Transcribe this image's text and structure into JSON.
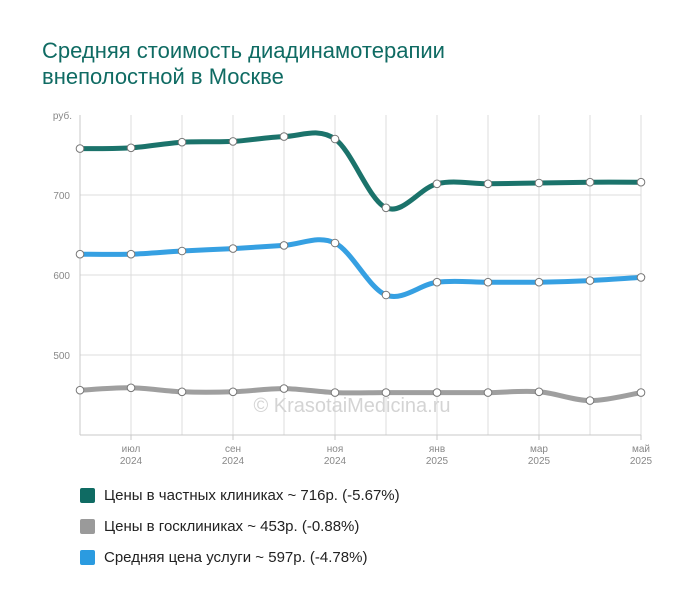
{
  "chart_data": {
    "type": "line",
    "title": [
      "Средняя стоимость диадинамотерапии",
      "внеполостной в Москве"
    ],
    "y_unit": "руб.",
    "y_ticks": [
      500,
      600,
      700
    ],
    "ylim": [
      400,
      800
    ],
    "watermark": "© KrasotaiMedicina.ru",
    "x": [
      "2024-06",
      "2024-07",
      "2024-08",
      "2024-09",
      "2024-10",
      "2024-11",
      "2024-12",
      "2025-01",
      "2025-02",
      "2025-03",
      "2025-04",
      "2025-05"
    ],
    "x_tick_labels": [
      {
        "index": 1,
        "month": "июл",
        "year": "2024"
      },
      {
        "index": 3,
        "month": "сен",
        "year": "2024"
      },
      {
        "index": 5,
        "month": "ноя",
        "year": "2024"
      },
      {
        "index": 7,
        "month": "янв",
        "year": "2025"
      },
      {
        "index": 9,
        "month": "мар",
        "year": "2025"
      },
      {
        "index": 11,
        "month": "май",
        "year": "2025"
      }
    ],
    "grid": true,
    "legend_position": "bottom",
    "series": [
      {
        "name": "Цены в частных клиниках",
        "color": "#0f6b63",
        "values": [
          758,
          759,
          766,
          767,
          773,
          770,
          684,
          714,
          714,
          715,
          716,
          716
        ]
      },
      {
        "name": "Цены в госклиниках",
        "color": "#9a9a9a",
        "values": [
          456,
          459,
          454,
          454,
          458,
          453,
          453,
          453,
          453,
          454,
          443,
          453
        ]
      },
      {
        "name": "Средняя цена услуги",
        "color": "#2b9be0",
        "values": [
          626,
          626,
          630,
          633,
          637,
          640,
          575,
          591,
          591,
          591,
          593,
          597
        ]
      }
    ]
  },
  "legend": [
    {
      "label": "Цены в частных клиниках ~ 716р. (-5.67%)",
      "color": "#0f6b63"
    },
    {
      "label": "Цены в госклиниках ~ 453р. (-0.88%)",
      "color": "#9a9a9a"
    },
    {
      "label": "Средняя цена услуги ~ 597р. (-4.78%)",
      "color": "#2b9be0"
    }
  ]
}
